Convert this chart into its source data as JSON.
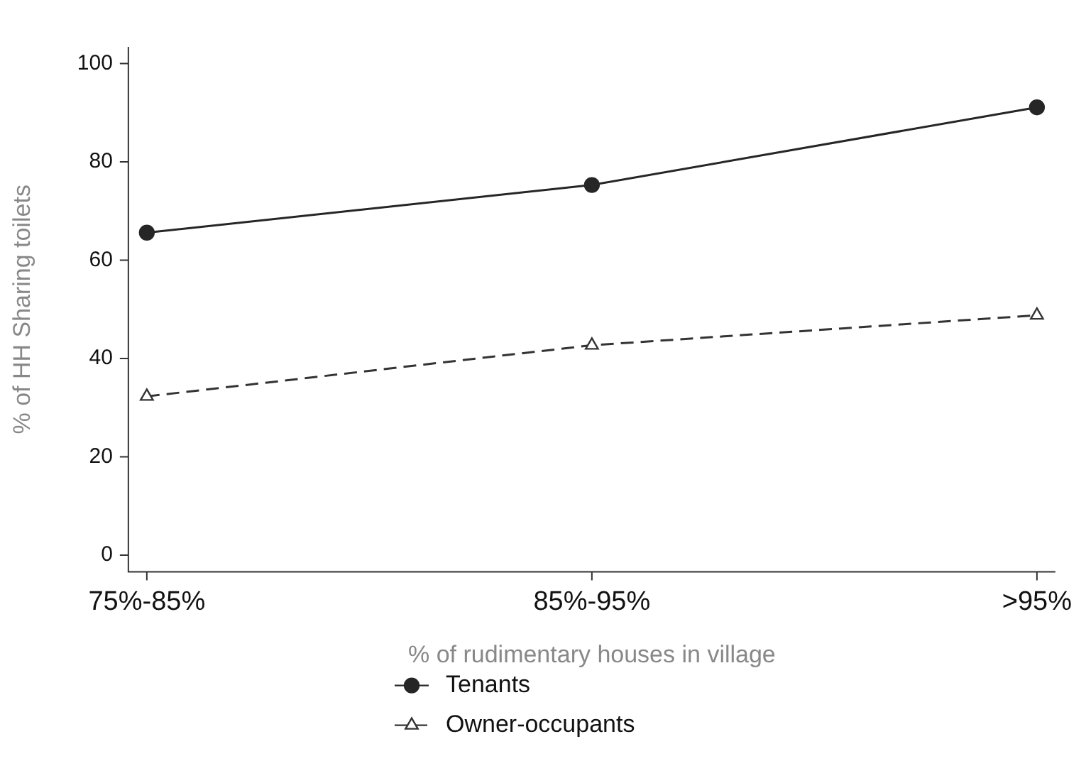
{
  "chart_data": {
    "type": "line",
    "xlabel": "% of rudimentary houses in village",
    "ylabel": "% of HH Sharing toilets",
    "categories": [
      "75%-85%",
      "85%-95%",
      ">95%"
    ],
    "series": [
      {
        "name": "Tenants",
        "color": "#262626",
        "values": [
          65.6,
          75.3,
          91.1
        ],
        "marker": "circle",
        "line_style": "solid"
      },
      {
        "name": "Owner-occupants",
        "color": "#333333",
        "values": [
          32.3,
          42.7,
          48.8
        ],
        "marker": "triangle",
        "line_style": "dashed"
      }
    ],
    "ylim": [
      -3.4,
      103.4
    ],
    "yticks": [
      0,
      20,
      40,
      60,
      80,
      100
    ],
    "grid": false,
    "legend": "bottom"
  }
}
